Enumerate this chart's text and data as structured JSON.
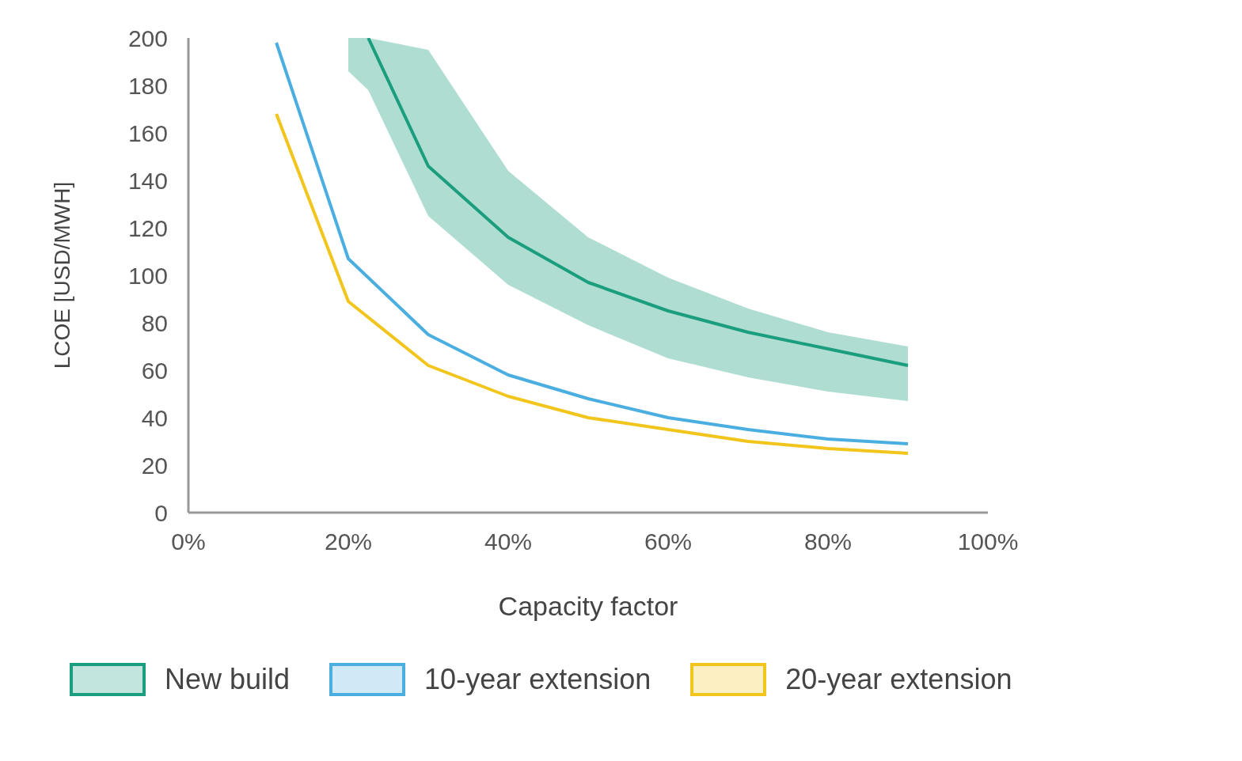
{
  "chart_data": {
    "type": "line",
    "xlabel": "Capacity factor",
    "ylabel": "LCOE [USD/MWH]",
    "xlim": [
      0,
      100
    ],
    "xticks": [
      {
        "value": 0,
        "label": "0%"
      },
      {
        "value": 20,
        "label": "20%"
      },
      {
        "value": 40,
        "label": "40%"
      },
      {
        "value": 60,
        "label": "60%"
      },
      {
        "value": 80,
        "label": "80%"
      },
      {
        "value": 100,
        "label": "100%"
      }
    ],
    "ylim": [
      0,
      200
    ],
    "yticks": [
      0,
      20,
      40,
      60,
      80,
      100,
      120,
      140,
      160,
      180,
      200
    ],
    "legend": "bottom",
    "marker": "none",
    "line_style": "solid",
    "series": [
      {
        "name": "New build",
        "color": "#1a9e7e",
        "x": [
          20,
          22.5,
          30,
          40,
          50,
          60,
          70,
          80,
          90
        ],
        "values": [
          null,
          200,
          146,
          116,
          97,
          85,
          76,
          69,
          62
        ],
        "lower": [
          186,
          178,
          125,
          96,
          79,
          65,
          57,
          51,
          47
        ],
        "upper": [
          200,
          200,
          195,
          144,
          116,
          99,
          86,
          76,
          70
        ]
      },
      {
        "name": "10-year extension",
        "color": "#4aaee0",
        "x": [
          11,
          20,
          30,
          40,
          50,
          60,
          70,
          80,
          90
        ],
        "values": [
          198,
          107,
          75,
          58,
          48,
          40,
          35,
          31,
          29
        ]
      },
      {
        "name": "20-year extension",
        "color": "#f2c51c",
        "x": [
          11,
          20,
          30,
          40,
          50,
          60,
          70,
          80,
          90
        ],
        "values": [
          168,
          89,
          62,
          49,
          40,
          35,
          30,
          27,
          25
        ]
      }
    ]
  }
}
